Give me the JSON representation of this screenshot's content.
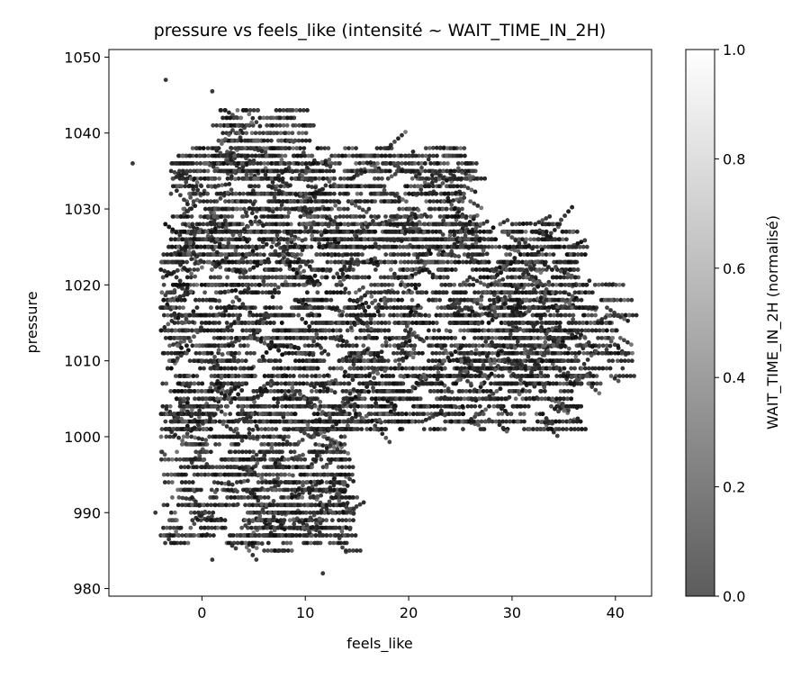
{
  "chart_data": {
    "type": "scatter",
    "title": "pressure vs feels_like (intensité ~ WAIT_TIME_IN_2H)",
    "xlabel": "feels_like",
    "ylabel": "pressure",
    "xlim": [
      -9,
      43.5
    ],
    "ylim": [
      979,
      1051
    ],
    "xticks": [
      0,
      10,
      20,
      30,
      40
    ],
    "yticks": [
      980,
      990,
      1000,
      1010,
      1020,
      1030,
      1040,
      1050
    ],
    "grid": false,
    "marker_color_range": [
      "#5c5c5c",
      "#ffffff"
    ],
    "colorbar": {
      "label": "WAIT_TIME_IN_2H (normalisé)",
      "range": [
        0.0,
        1.0
      ],
      "ticks": [
        "0.0",
        "0.2",
        "0.4",
        "0.6",
        "0.8",
        "1.0"
      ]
    },
    "outliers": [
      {
        "x": -3.5,
        "y": 1047
      },
      {
        "x": 1,
        "y": 1045.5
      },
      {
        "x": 11.7,
        "y": 982
      },
      {
        "x": 1,
        "y": 983.8
      },
      {
        "x": 40.7,
        "y": 1009
      },
      {
        "x": -6.7,
        "y": 1036
      },
      {
        "x": -4.5,
        "y": 990
      },
      {
        "x": 14,
        "y": 986
      }
    ],
    "clusters": [
      {
        "x_range": [
          -4,
          36
        ],
        "y_range": [
          1001,
          1028
        ],
        "density": 2200
      },
      {
        "x_range": [
          -3,
          26
        ],
        "y_range": [
          1024,
          1038
        ],
        "density": 650
      },
      {
        "x_range": [
          -4,
          14
        ],
        "y_range": [
          986,
          1004
        ],
        "density": 420
      },
      {
        "x_range": [
          1,
          10
        ],
        "y_range": [
          1034,
          1043
        ],
        "density": 120
      },
      {
        "x_range": [
          24,
          40.5
        ],
        "y_range": [
          1007,
          1020
        ],
        "density": 240
      },
      {
        "x_range": [
          4,
          14
        ],
        "y_range": [
          985,
          996
        ],
        "density": 110
      }
    ]
  }
}
